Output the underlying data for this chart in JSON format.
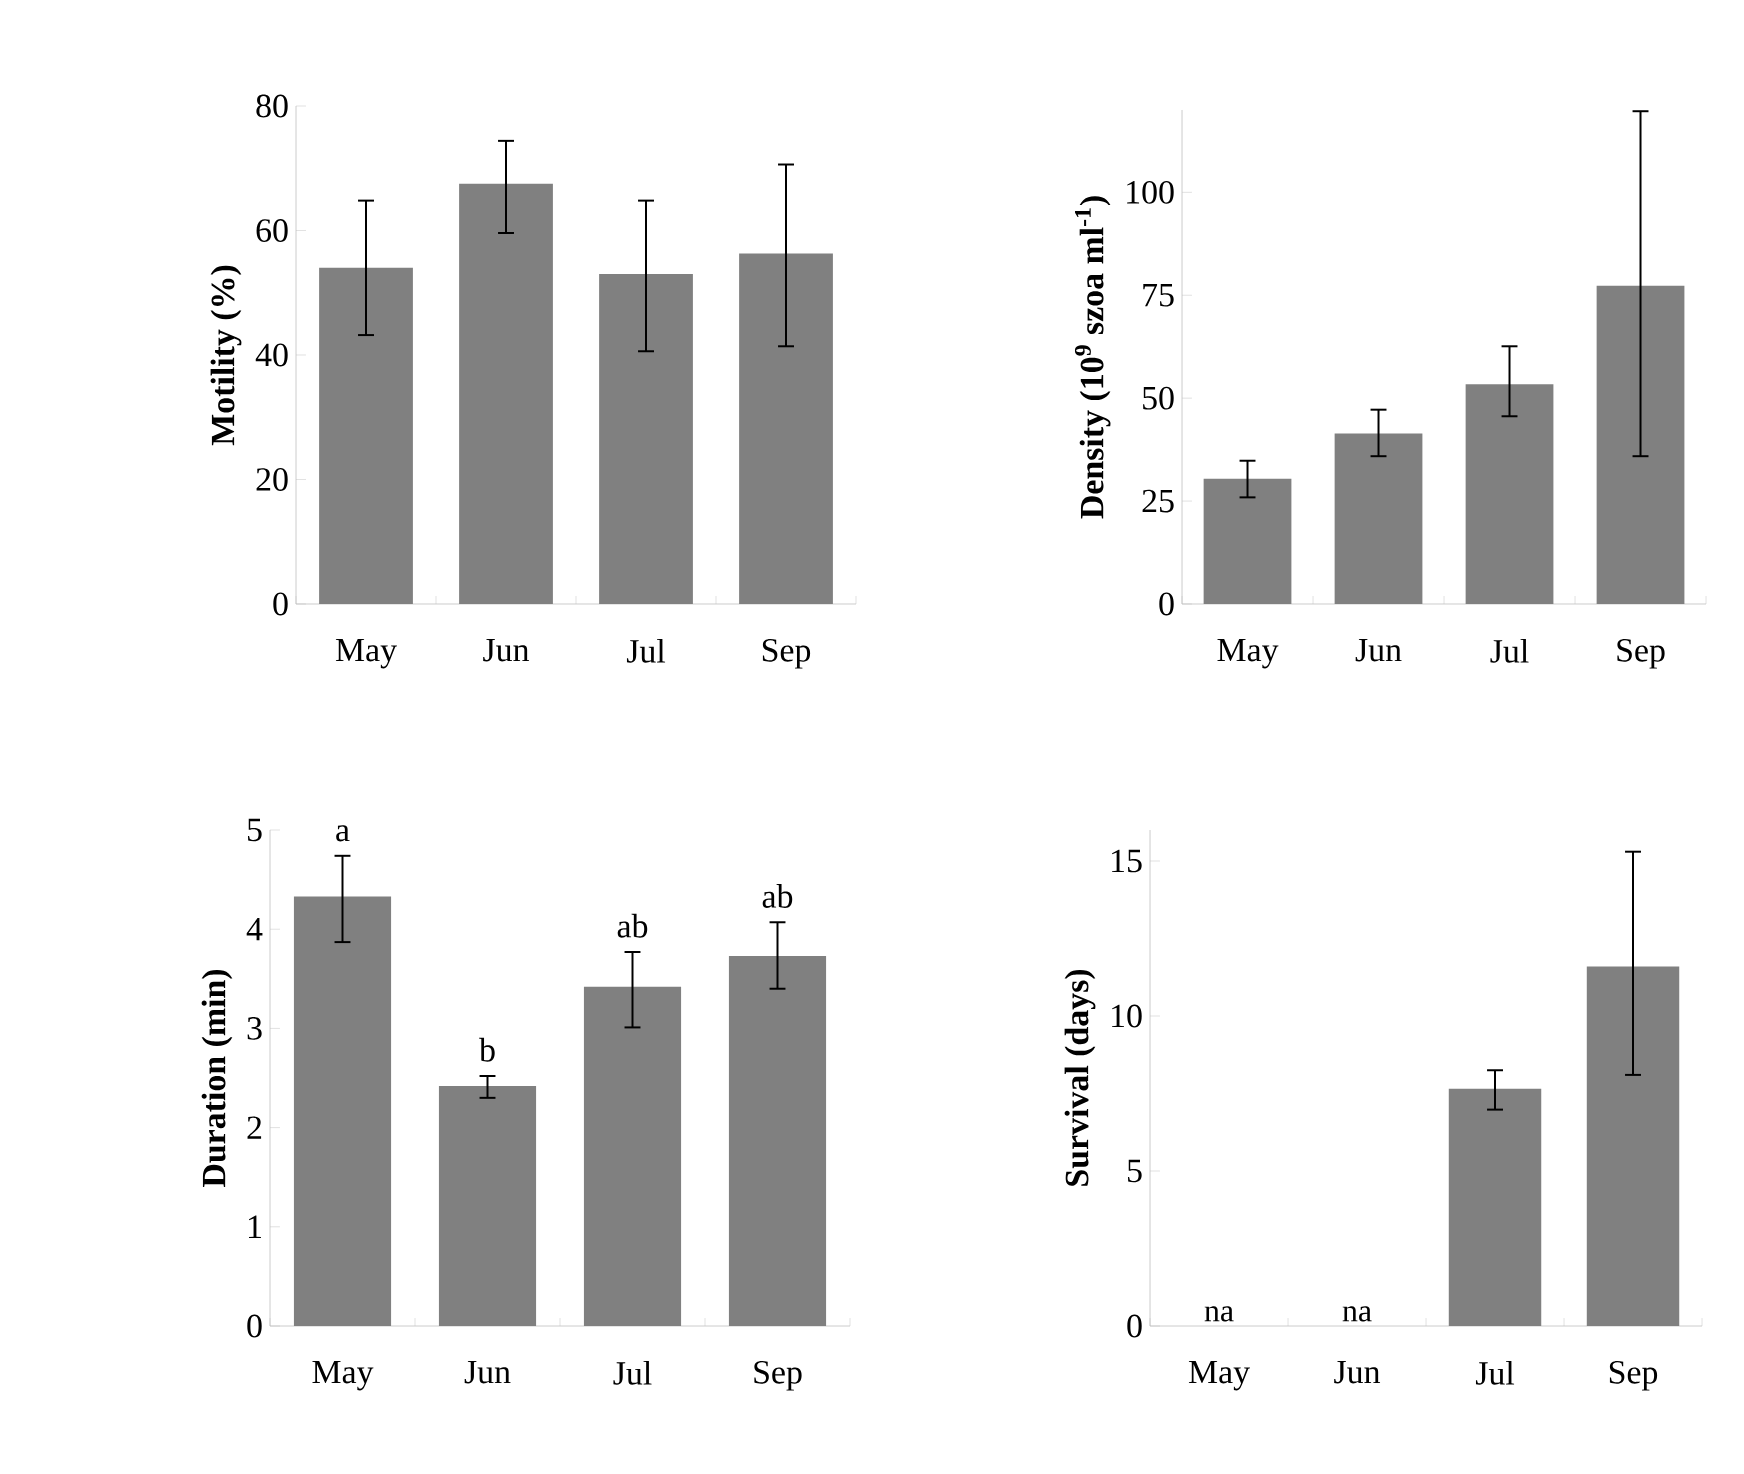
{
  "chart_data": [
    {
      "type": "bar",
      "ylabel": "Motility (%)",
      "categories": [
        "May",
        "Jun",
        "Jul",
        "Sep"
      ],
      "values": [
        54,
        67.5,
        53,
        56.3
      ],
      "errors": [
        [
          43.2,
          64.8
        ],
        [
          59.6,
          74.4
        ],
        [
          40.6,
          64.8
        ],
        [
          41.4,
          70.6
        ]
      ],
      "color": "#808080",
      "ylim": [
        0,
        80
      ],
      "yticks": [
        0,
        20,
        40,
        60,
        80
      ]
    },
    {
      "type": "bar",
      "ylabel": "Density (10$^{9}$ szoa ml$^{-1}$)",
      "categories": [
        "May",
        "Jun",
        "Jul",
        "Sep"
      ],
      "values": [
        30.4,
        41.4,
        53.4,
        77.3
      ],
      "errors": [
        [
          25.9,
          34.8
        ],
        [
          35.9,
          47.2
        ],
        [
          45.6,
          62.6
        ],
        [
          35.9,
          119.7
        ]
      ],
      "color": "#808080",
      "ylim": [
        0,
        120
      ],
      "yticks": [
        0,
        25,
        50,
        75,
        100
      ]
    },
    {
      "type": "bar",
      "ylabel": "Duration (min)",
      "categories": [
        "May",
        "Jun",
        "Jul",
        "Sep"
      ],
      "values": [
        4.33,
        2.42,
        3.42,
        3.73
      ],
      "errors": [
        [
          3.87,
          4.74
        ],
        [
          2.3,
          2.52
        ],
        [
          3.01,
          3.77
        ],
        [
          3.4,
          4.07
        ]
      ],
      "color": "#808080",
      "ylim": [
        0,
        5
      ],
      "yticks": [
        0,
        1,
        2,
        3,
        4,
        5
      ],
      "annotations": [
        "a",
        "b",
        "ab",
        "ab"
      ]
    },
    {
      "type": "bar",
      "ylabel": "Survival (days)",
      "categories": [
        "May",
        "Jun",
        "Jul",
        "Sep"
      ],
      "values": [
        null,
        null,
        7.65,
        11.6
      ],
      "value_labels": [
        "na",
        "na",
        null,
        null
      ],
      "errors": [
        null,
        null,
        [
          6.98,
          8.25
        ],
        [
          8.1,
          15.3
        ]
      ],
      "color": "#808080",
      "ylim": [
        0,
        16
      ],
      "yticks": [
        0,
        5,
        10,
        15
      ]
    }
  ]
}
